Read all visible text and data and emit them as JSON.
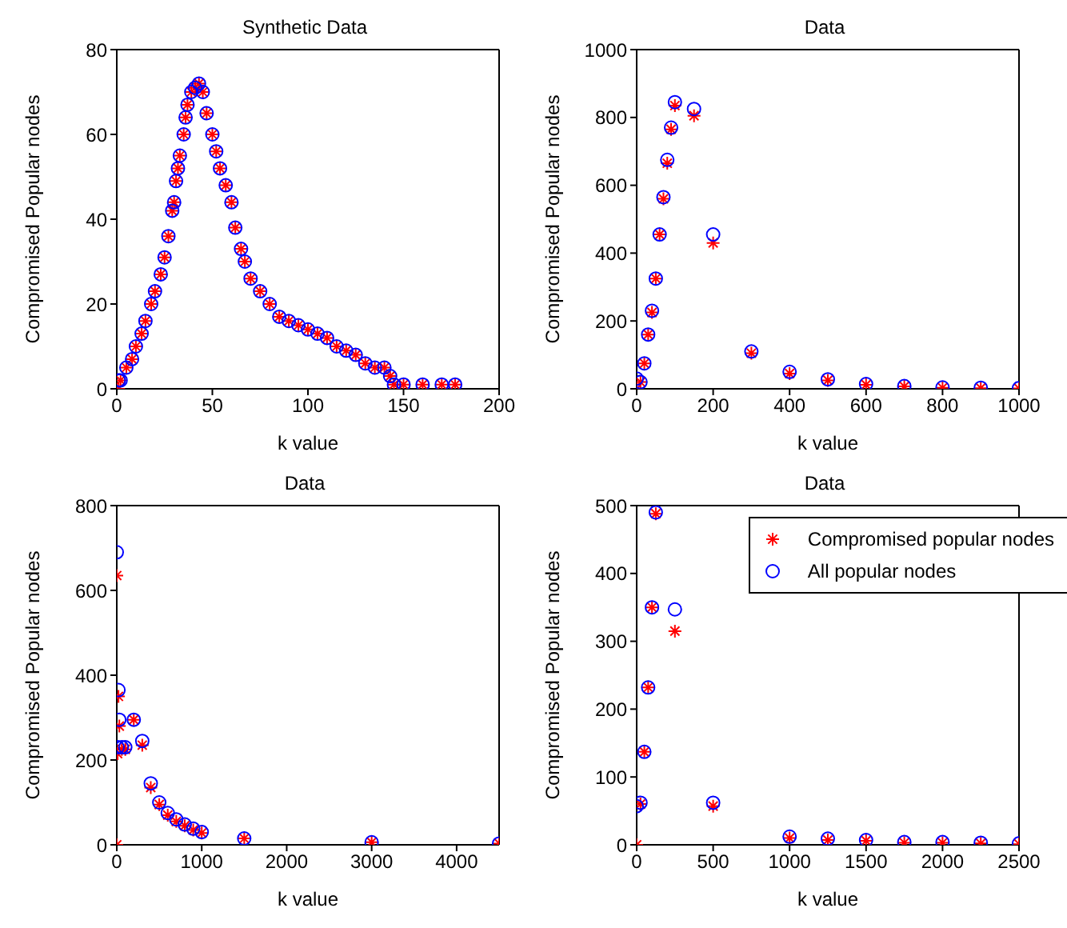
{
  "chart_data": [
    {
      "type": "scatter",
      "title": "Synthetic Data",
      "xlabel": "k value",
      "ylabel": "Compromised Popular nodes",
      "xlim": [
        0,
        200
      ],
      "xticks": [
        0,
        50,
        100,
        150,
        200
      ],
      "ylim": [
        0,
        80
      ],
      "yticks": [
        0,
        20,
        40,
        60,
        80
      ],
      "legend": false,
      "x": [
        1,
        2,
        5,
        8,
        10,
        13,
        15,
        18,
        20,
        23,
        25,
        27,
        29,
        30,
        31,
        32,
        33,
        35,
        36,
        37,
        39,
        41,
        43,
        45,
        47,
        50,
        52,
        54,
        57,
        60,
        62,
        65,
        67,
        70,
        75,
        80,
        85,
        90,
        95,
        100,
        105,
        110,
        115,
        120,
        125,
        130,
        135,
        140,
        143,
        145,
        150,
        160,
        170,
        177
      ],
      "series": [
        {
          "color": "#ff0000",
          "marker": "cross",
          "values": [
            0,
            2,
            5,
            7,
            10,
            13,
            16,
            20,
            23,
            27,
            31,
            36,
            42,
            44,
            49,
            52,
            55,
            60,
            64,
            67,
            70,
            71,
            72,
            70,
            65,
            60,
            56,
            52,
            48,
            44,
            38,
            33,
            30,
            26,
            23,
            20,
            17,
            16,
            15,
            14,
            13,
            12,
            10,
            9,
            8,
            6,
            5,
            5,
            3,
            1,
            1,
            1,
            1,
            1
          ]
        },
        {
          "color": "#0000ff",
          "marker": "circle",
          "values": [
            2,
            2,
            5,
            7,
            10,
            13,
            16,
            20,
            23,
            27,
            31,
            36,
            42,
            44,
            49,
            52,
            55,
            60,
            64,
            67,
            70,
            71,
            72,
            70,
            65,
            60,
            56,
            52,
            48,
            44,
            38,
            33,
            30,
            26,
            23,
            20,
            17,
            16,
            15,
            14,
            13,
            12,
            10,
            9,
            8,
            6,
            5,
            5,
            3,
            1,
            1,
            1,
            1,
            1
          ]
        }
      ]
    },
    {
      "type": "scatter",
      "title": "Data",
      "xlabel": "k value",
      "ylabel": "Compromised Popular nodes",
      "xlim": [
        0,
        1000
      ],
      "xticks": [
        0,
        200,
        400,
        600,
        800,
        1000
      ],
      "ylim": [
        0,
        1000
      ],
      "yticks": [
        0,
        200,
        400,
        600,
        800,
        1000
      ],
      "legend": false,
      "x": [
        0,
        10,
        20,
        30,
        40,
        50,
        60,
        70,
        80,
        90,
        100,
        150,
        200,
        300,
        400,
        500,
        600,
        700,
        800,
        900,
        1000
      ],
      "series": [
        {
          "color": "#ff0000",
          "marker": "cross",
          "values": [
            0,
            20,
            75,
            160,
            225,
            325,
            455,
            560,
            665,
            765,
            835,
            805,
            430,
            105,
            45,
            25,
            12,
            7,
            3,
            2,
            1
          ]
        },
        {
          "color": "#0000ff",
          "marker": "circle",
          "values": [
            30,
            20,
            75,
            160,
            230,
            325,
            455,
            565,
            675,
            770,
            845,
            825,
            455,
            110,
            50,
            28,
            14,
            8,
            4,
            3,
            2
          ]
        }
      ]
    },
    {
      "type": "scatter",
      "title": "Data",
      "xlabel": "k value",
      "ylabel": "Compromised Popular nodes",
      "xlim": [
        0,
        4500
      ],
      "xticks": [
        0,
        1000,
        2000,
        3000,
        4000
      ],
      "ylim": [
        0,
        800
      ],
      "yticks": [
        0,
        200,
        400,
        600,
        800
      ],
      "legend": false,
      "series": [
        {
          "color": "#ff0000",
          "marker": "cross",
          "x": [
            0,
            0,
            10,
            20,
            30,
            60,
            100,
            200,
            300,
            400,
            500,
            600,
            700,
            800,
            900,
            1000,
            1500,
            3000,
            4500
          ],
          "values": [
            0,
            635,
            215,
            350,
            280,
            225,
            225,
            295,
            235,
            135,
            95,
            70,
            55,
            45,
            35,
            28,
            15,
            6,
            3
          ]
        },
        {
          "color": "#0000ff",
          "marker": "circle",
          "x": [
            0,
            10,
            20,
            30,
            60,
            100,
            200,
            300,
            400,
            500,
            600,
            700,
            800,
            900,
            1000,
            1500,
            3000,
            4500
          ],
          "values": [
            690,
            230,
            365,
            295,
            230,
            230,
            295,
            245,
            145,
            100,
            75,
            60,
            48,
            38,
            30,
            15,
            6,
            3
          ]
        }
      ]
    },
    {
      "type": "scatter",
      "title": "Data",
      "xlabel": "k value",
      "ylabel": "Compromised Popular nodes",
      "xlim": [
        0,
        2500
      ],
      "xticks": [
        0,
        500,
        1000,
        1500,
        2000,
        2500
      ],
      "ylim": [
        0,
        500
      ],
      "yticks": [
        0,
        100,
        200,
        300,
        400,
        500
      ],
      "legend": "top right",
      "x": [
        0,
        25,
        50,
        75,
        100,
        125,
        250,
        500,
        1000,
        1250,
        1500,
        1750,
        2000,
        2250,
        2500
      ],
      "series": [
        {
          "name": "Compromised popular nodes",
          "color": "#ff0000",
          "marker": "cross",
          "values": [
            0,
            60,
            137,
            232,
            350,
            488,
            315,
            57,
            10,
            7,
            6,
            3,
            3,
            2,
            1
          ]
        },
        {
          "name": "All popular nodes",
          "color": "#0000ff",
          "marker": "circle",
          "values": [
            57,
            62,
            137,
            232,
            350,
            490,
            347,
            62,
            12,
            9,
            7,
            4,
            4,
            3,
            2
          ]
        }
      ]
    }
  ]
}
